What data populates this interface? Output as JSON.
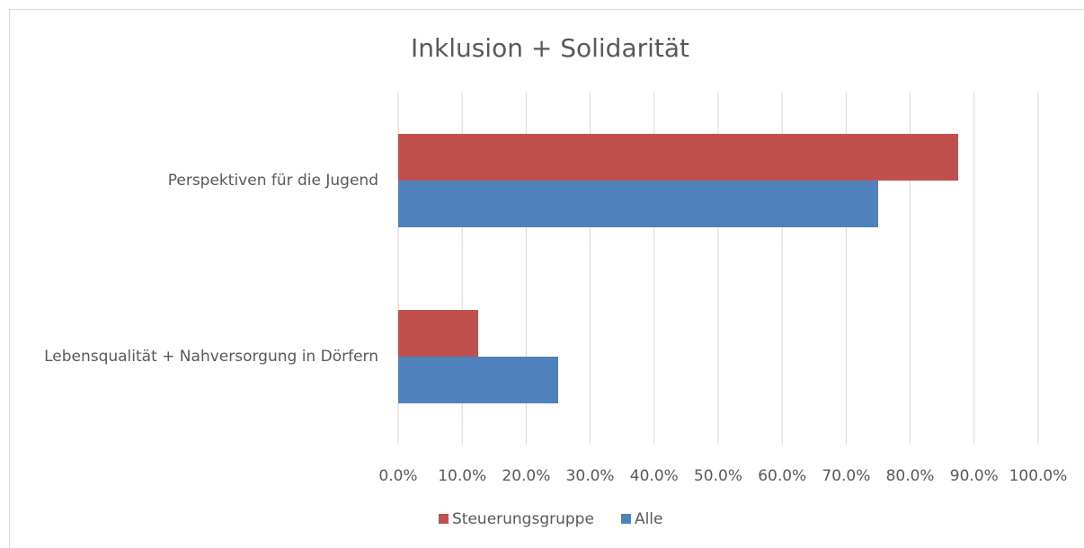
{
  "chart_data": {
    "type": "hbar",
    "title": "Inklusion + Solidarität",
    "categories": [
      "Perspektiven für die Jugend",
      "Lebensqualität + Nahversorgung in Dörfern"
    ],
    "series": [
      {
        "name": "Steuerungsgruppe",
        "color": "#c0504d",
        "values": [
          87.5,
          12.5
        ]
      },
      {
        "name": "Alle",
        "color": "#4f81bd",
        "values": [
          75,
          25
        ]
      }
    ],
    "xlim": [
      0,
      100
    ],
    "xticks": [
      {
        "value": 0,
        "label": "0.0%"
      },
      {
        "value": 10,
        "label": "10.0%"
      },
      {
        "value": 20,
        "label": "20.0%"
      },
      {
        "value": 30,
        "label": "30.0%"
      },
      {
        "value": 40,
        "label": "40.0%"
      },
      {
        "value": 50,
        "label": "50.0%"
      },
      {
        "value": 60,
        "label": "60.0%"
      },
      {
        "value": 70,
        "label": "70.0%"
      },
      {
        "value": 80,
        "label": "80.0%"
      },
      {
        "value": 90,
        "label": "90.0%"
      },
      {
        "value": 100,
        "label": "100.0%"
      }
    ],
    "grid": true,
    "legend": "bottom"
  }
}
